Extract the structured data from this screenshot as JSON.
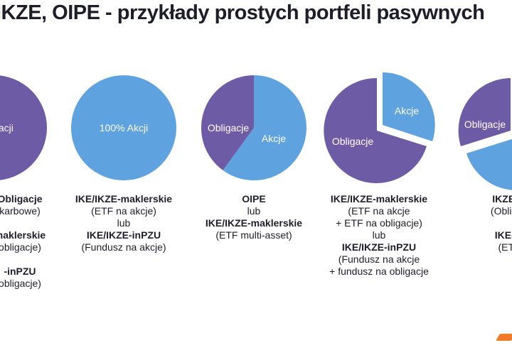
{
  "title": "IKZE, OIPE - przykłady prostych portfeli pasywnych",
  "colors": {
    "bonds": "#6e5ba6",
    "stocks": "#5ea2df",
    "text": "#1e1e2a",
    "accent": "#f07a28"
  },
  "pies": [
    {
      "label": "Obligacji",
      "stocks_percent": 0
    },
    {
      "label": "100% Akcji",
      "stocks_percent": 100
    },
    {
      "label_bonds": "Obligacje",
      "label_stocks": "Akcje",
      "stocks_percent": 60
    },
    {
      "label_bonds": "Obligacje",
      "label_stocks": "Akcje",
      "stocks_percent": 30
    },
    {
      "label_bonds": "Obligacje",
      "stocks_percent": 50
    }
  ],
  "captions": [
    {
      "lines": [
        "Obligacje",
        "karbowe)",
        "",
        "maklerskie",
        "obligacje)",
        "",
        "-inPZU",
        "obligacje)"
      ]
    },
    {
      "lines": [
        "IKE/IKZE-maklerskie",
        "(ETF na akcje)",
        "lub",
        "IKE/IKZE-inPZU",
        "(Fundusz na akcje)"
      ]
    },
    {
      "lines": [
        "OIPE",
        "lub",
        "IKE/IKZE-maklerskie",
        "(ETF multi-asset)"
      ]
    },
    {
      "lines": [
        "IKE/IKZE-maklerskie",
        "(ETF na akcje",
        "+ ETF na obligacje)",
        "lub",
        "IKE/IKZE-inPZU",
        "(Fundusz na akcje",
        "+ fundusz na obligacje"
      ]
    },
    {
      "lines": [
        "IKZE-O",
        "(Obligac",
        "",
        "IKE-m",
        "(ETF"
      ]
    }
  ]
}
